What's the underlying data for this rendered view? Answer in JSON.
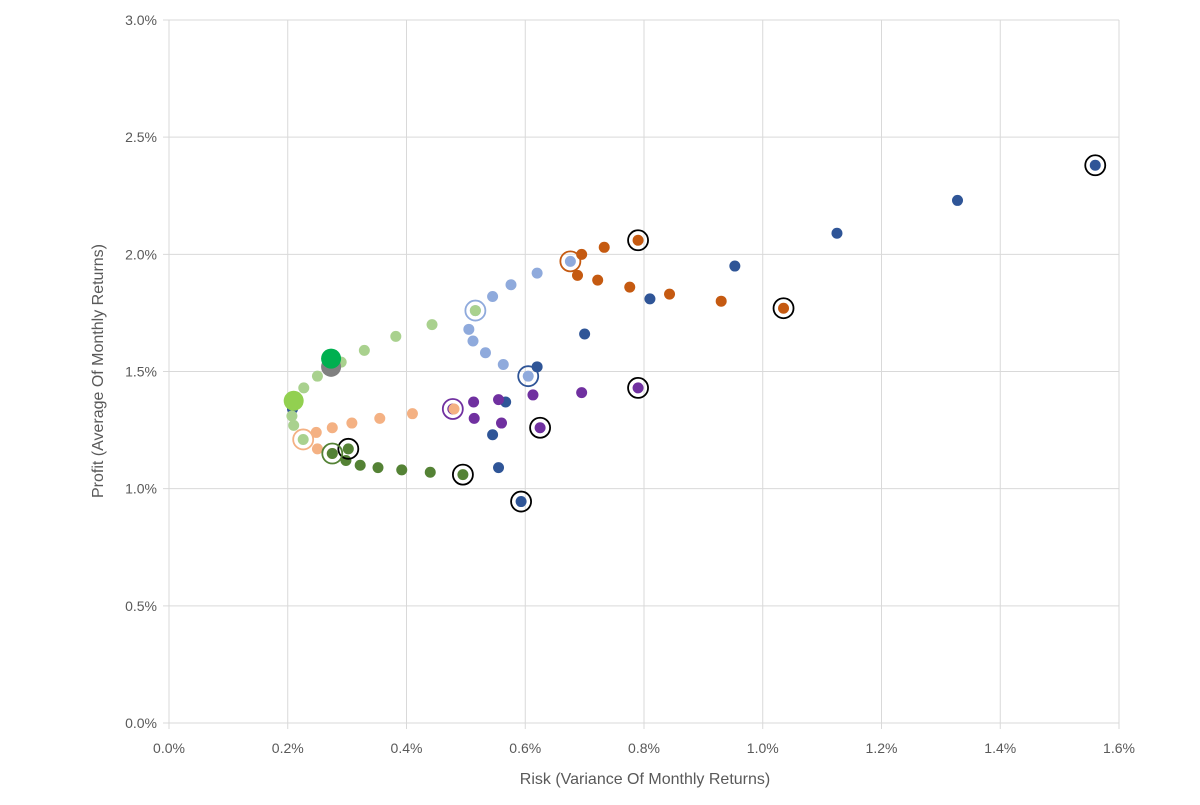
{
  "chart_data": {
    "type": "scatter",
    "title": "",
    "xlabel": "Risk (Variance Of Monthly Returns)",
    "ylabel": "Profit (Average Of Monthly Returns)",
    "xlim": [
      0.0,
      1.6
    ],
    "ylim": [
      0.0,
      3.0
    ],
    "x_ticks": [
      "0.0%",
      "0.2%",
      "0.4%",
      "0.6%",
      "0.8%",
      "1.0%",
      "1.2%",
      "1.4%",
      "1.6%"
    ],
    "y_ticks": [
      "0.0%",
      "0.5%",
      "1.0%",
      "1.5%",
      "2.0%",
      "2.5%",
      "3.0%"
    ],
    "grid": true,
    "legend": "none",
    "series": [
      {
        "color": "#2f5597",
        "points": [
          [
            0.208,
            1.34
          ],
          [
            0.555,
            1.09
          ],
          [
            0.545,
            1.23
          ],
          [
            0.567,
            1.37
          ],
          [
            0.62,
            1.52
          ],
          [
            0.7,
            1.66
          ],
          [
            0.81,
            1.81
          ],
          [
            0.953,
            1.95
          ],
          [
            1.125,
            2.09
          ],
          [
            1.328,
            2.23
          ],
          [
            1.56,
            2.38
          ],
          [
            0.593,
            0.945
          ]
        ]
      },
      {
        "color": "#c55a11",
        "points": [
          [
            0.688,
            1.91
          ],
          [
            0.722,
            1.89
          ],
          [
            0.776,
            1.86
          ],
          [
            0.843,
            1.83
          ],
          [
            0.93,
            1.8
          ],
          [
            1.035,
            1.77
          ],
          [
            0.695,
            2.0
          ],
          [
            0.733,
            2.03
          ],
          [
            0.79,
            2.06
          ]
        ]
      },
      {
        "color": "#8faadc",
        "points": [
          [
            0.516,
            1.76
          ],
          [
            0.505,
            1.68
          ],
          [
            0.512,
            1.63
          ],
          [
            0.533,
            1.58
          ],
          [
            0.563,
            1.53
          ],
          [
            0.605,
            1.48
          ],
          [
            0.545,
            1.82
          ],
          [
            0.576,
            1.87
          ],
          [
            0.62,
            1.92
          ],
          [
            0.676,
            1.97
          ]
        ]
      },
      {
        "color": "#7030a0",
        "points": [
          [
            0.478,
            1.34
          ],
          [
            0.513,
            1.37
          ],
          [
            0.514,
            1.3
          ],
          [
            0.555,
            1.38
          ],
          [
            0.56,
            1.28
          ],
          [
            0.613,
            1.4
          ],
          [
            0.625,
            1.26
          ],
          [
            0.695,
            1.41
          ],
          [
            0.79,
            1.43
          ]
        ]
      },
      {
        "color": "#f4b183",
        "points": [
          [
            0.248,
            1.24
          ],
          [
            0.275,
            1.26
          ],
          [
            0.308,
            1.28
          ],
          [
            0.355,
            1.3
          ],
          [
            0.41,
            1.32
          ],
          [
            0.48,
            1.34
          ],
          [
            0.25,
            1.17
          ],
          [
            0.275,
            1.15
          ]
        ]
      },
      {
        "color": "#548235",
        "points": [
          [
            0.302,
            1.17
          ],
          [
            0.298,
            1.12
          ],
          [
            0.322,
            1.1
          ],
          [
            0.352,
            1.09
          ],
          [
            0.392,
            1.08
          ],
          [
            0.44,
            1.07
          ],
          [
            0.495,
            1.06
          ],
          [
            0.275,
            1.15
          ]
        ]
      },
      {
        "color": "#a9d18e",
        "points": [
          [
            0.207,
            1.31
          ],
          [
            0.21,
            1.27
          ],
          [
            0.226,
            1.21
          ],
          [
            0.227,
            1.43
          ],
          [
            0.25,
            1.48
          ],
          [
            0.29,
            1.54
          ],
          [
            0.329,
            1.59
          ],
          [
            0.382,
            1.65
          ],
          [
            0.443,
            1.7
          ],
          [
            0.516,
            1.76
          ]
        ]
      },
      {
        "color": "#808080",
        "points": [
          [
            0.273,
            1.52
          ]
        ],
        "size": "large"
      },
      {
        "color": "#00b050",
        "points": [
          [
            0.273,
            1.555
          ]
        ],
        "size": "large"
      },
      {
        "color": "#92d050",
        "points": [
          [
            0.21,
            1.375
          ]
        ],
        "size": "large"
      }
    ],
    "highlighted_points": [
      {
        "x": 1.56,
        "y": 2.38,
        "ring": "#000000"
      },
      {
        "x": 1.035,
        "y": 1.77,
        "ring": "#000000"
      },
      {
        "x": 0.79,
        "y": 2.06,
        "ring": "#000000"
      },
      {
        "x": 0.79,
        "y": 1.43,
        "ring": "#000000"
      },
      {
        "x": 0.625,
        "y": 1.26,
        "ring": "#000000"
      },
      {
        "x": 0.593,
        "y": 0.945,
        "ring": "#000000"
      },
      {
        "x": 0.495,
        "y": 1.06,
        "ring": "#000000"
      },
      {
        "x": 0.302,
        "y": 1.17,
        "ring": "#000000"
      },
      {
        "x": 0.676,
        "y": 1.97,
        "ring": "#c55a11"
      },
      {
        "x": 0.516,
        "y": 1.76,
        "ring": "#8faadc"
      },
      {
        "x": 0.605,
        "y": 1.48,
        "ring": "#2f5597"
      },
      {
        "x": 0.478,
        "y": 1.34,
        "ring": "#7030a0"
      },
      {
        "x": 0.226,
        "y": 1.21,
        "ring": "#f4b183"
      },
      {
        "x": 0.275,
        "y": 1.15,
        "ring": "#548235"
      }
    ]
  }
}
